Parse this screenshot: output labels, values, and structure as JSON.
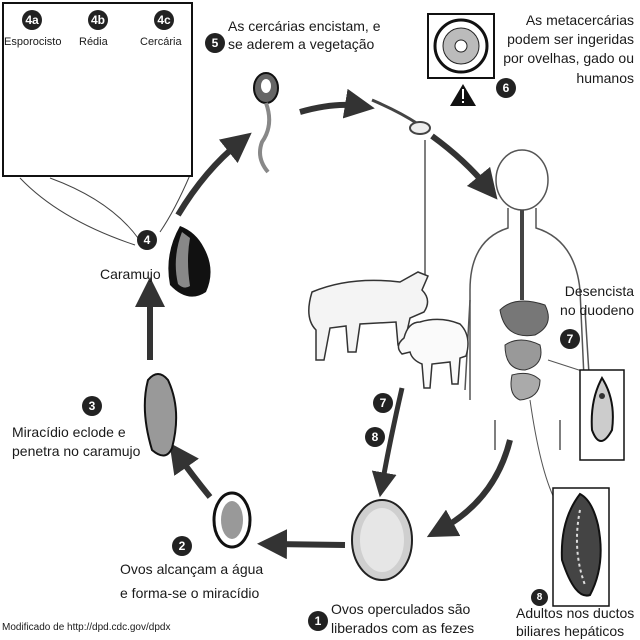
{
  "inset": {
    "stage_a": {
      "num": "4a",
      "label": "Esporocisto"
    },
    "stage_b": {
      "num": "4b",
      "label": "Rédia"
    },
    "stage_c": {
      "num": "4c",
      "label": "Cercária"
    }
  },
  "steps": {
    "s1": {
      "num": "1",
      "line1": "Ovos operculados são",
      "line2": "liberados com as fezes"
    },
    "s2": {
      "num": "2",
      "line1": "Ovos alcançam a água",
      "line2": "e forma-se o miracídio"
    },
    "s3": {
      "num": "3",
      "line1": "Miracídio eclode e",
      "line2": "penetra no caramujo"
    },
    "s4": {
      "num": "4",
      "label": "Caramujo"
    },
    "s5": {
      "num": "5",
      "line1": "As cercárias encistam, e",
      "line2": "se aderem a vegetação"
    },
    "s6": {
      "num": "6",
      "line1": "As metacercárias",
      "line2": "podem ser ingeridas",
      "line3": "por ovelhas, gado ou",
      "line4": "humanos"
    },
    "s7": {
      "num": "7",
      "line1": "Desencista",
      "line2": "no duodeno"
    },
    "s8": {
      "num": "8",
      "line1": "Adultos nos ductos",
      "line2": "biliares hepáticos"
    }
  },
  "animal_badges": {
    "a7": "7",
    "a8": "8"
  },
  "warning_icon": "infective-stage-triangle-icon",
  "credit": "Modificado de http://dpd.cdc.gov/dpdx"
}
